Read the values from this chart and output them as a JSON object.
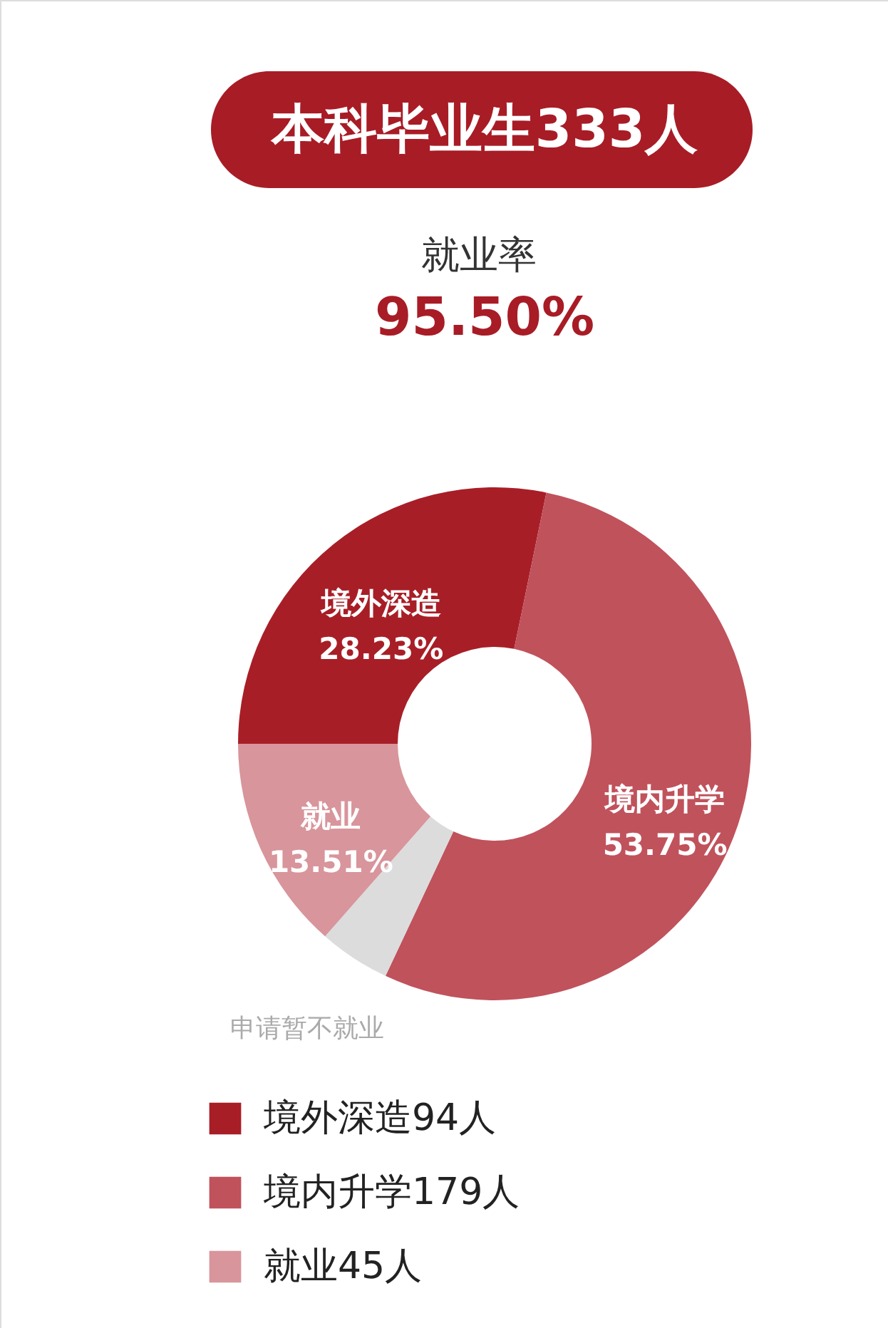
{
  "chart_data": {
    "type": "donut",
    "title": "本科毕业生333人",
    "subtitle": "就业率",
    "annotations": [
      "95.50%"
    ],
    "categories": [
      "境外深造94人",
      "境内升学179人",
      "申请暂不就业",
      "就业45人"
    ],
    "values": [
      28.23,
      53.75,
      4.5,
      13.51
    ],
    "colors": [
      "#a81e27",
      "#c0525c",
      "#dcdcdc",
      "#d8959b"
    ],
    "value_labels": [
      "境外深造\n28.23%",
      "境内升学\n53.75%",
      null,
      "就业\n13.51%"
    ],
    "legend": "bottom left"
  }
}
